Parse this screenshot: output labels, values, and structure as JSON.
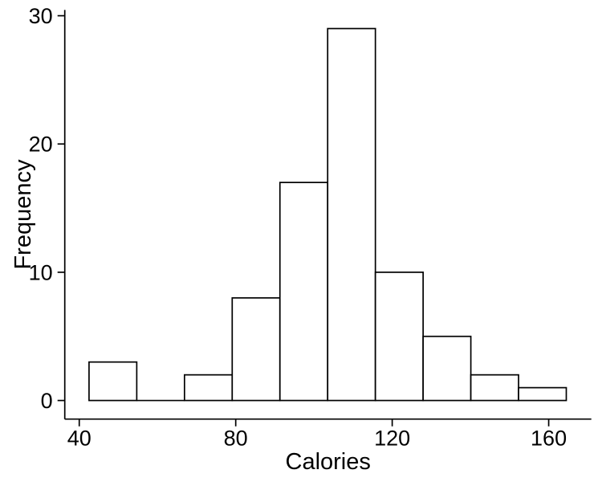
{
  "figure": {
    "background": "#FFFFFF",
    "foreground": "#000000"
  },
  "chart_data": {
    "type": "bar",
    "variant": "histogram",
    "title": "",
    "xlabel": "Calories",
    "ylabel": "Frequency",
    "bin_edges": [
      42.5,
      54.7,
      66.9,
      79.1,
      91.3,
      103.5,
      115.7,
      127.9,
      140.1,
      152.3,
      164.5
    ],
    "counts": [
      3,
      0,
      2,
      8,
      17,
      29,
      10,
      5,
      2,
      1
    ],
    "total_count": 77,
    "bar_fill": "#FFFFFF",
    "bar_stroke": "#000000",
    "grid": false,
    "legend": false,
    "x_axis": {
      "label": "Calories",
      "ticks": [
        40,
        80,
        120,
        160
      ],
      "range": [
        36.3,
        170.9
      ]
    },
    "y_axis": {
      "label": "Frequency",
      "ticks": [
        0,
        10,
        20,
        30
      ],
      "range": [
        -1.45,
        30.45
      ]
    }
  }
}
